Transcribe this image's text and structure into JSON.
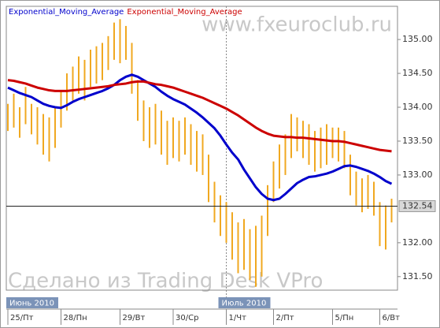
{
  "chart_data": {
    "type": "ohlc",
    "legend": [
      "Exponential_Moving_Average",
      "Exponential_Moving_Average"
    ],
    "watermarks": [
      "www.fxeuroclub.ru",
      "Сделано из Trading Desk VPro"
    ],
    "categories": [
      "25/Пт",
      null,
      null,
      null,
      null,
      null,
      null,
      null,
      null,
      "28/Пн",
      null,
      null,
      null,
      null,
      null,
      null,
      null,
      null,
      null,
      "29/Вт",
      null,
      null,
      null,
      null,
      null,
      null,
      null,
      null,
      "30/Ср",
      null,
      null,
      null,
      null,
      null,
      null,
      null,
      null,
      "1/Чт",
      null,
      null,
      null,
      null,
      null,
      null,
      null,
      "2/Пт",
      null,
      null,
      null,
      null,
      null,
      null,
      null,
      null,
      null,
      "5/Пн",
      null,
      null,
      null,
      null,
      null,
      null,
      null,
      "6/Вт",
      null,
      null
    ],
    "months": [
      "Июнь 2010",
      null,
      null,
      null,
      null,
      null,
      null,
      null,
      null,
      null,
      null,
      null,
      null,
      null,
      null,
      null,
      null,
      null,
      null,
      null,
      null,
      null,
      null,
      null,
      null,
      null,
      null,
      null,
      null,
      null,
      null,
      null,
      null,
      null,
      null,
      null,
      null,
      "Июль 2010",
      null,
      null,
      null,
      null,
      null,
      null,
      null,
      null,
      null,
      null,
      null,
      null,
      null,
      null,
      null,
      null,
      null,
      null,
      null,
      null,
      null,
      null,
      null,
      null,
      null,
      null,
      null,
      null
    ],
    "bars": {
      "color": "#f0a820",
      "high": [
        134.05,
        134.2,
        134.0,
        134.3,
        134.05,
        134.0,
        133.9,
        133.85,
        134.0,
        134.25,
        134.5,
        134.6,
        134.75,
        134.7,
        134.85,
        134.9,
        134.95,
        135.05,
        135.25,
        135.3,
        135.2,
        134.95,
        134.4,
        134.1,
        134.0,
        134.05,
        133.95,
        133.8,
        133.85,
        133.8,
        133.85,
        133.75,
        133.65,
        133.6,
        133.3,
        132.9,
        132.7,
        132.6,
        132.45,
        132.3,
        132.35,
        132.2,
        132.25,
        132.4,
        132.85,
        133.2,
        133.45,
        133.6,
        133.9,
        133.85,
        133.8,
        133.75,
        133.65,
        133.7,
        133.75,
        133.7,
        133.7,
        133.65,
        133.3,
        133.05,
        132.95,
        133.0,
        132.9,
        132.6,
        132.55,
        132.65
      ],
      "low": [
        133.65,
        133.7,
        133.55,
        133.75,
        133.6,
        133.45,
        133.3,
        133.2,
        133.4,
        133.7,
        133.95,
        134.1,
        134.2,
        134.1,
        134.3,
        134.35,
        134.4,
        134.55,
        134.7,
        134.65,
        134.7,
        134.2,
        133.8,
        133.5,
        133.4,
        133.45,
        133.3,
        133.15,
        133.25,
        133.2,
        133.3,
        133.15,
        133.05,
        133.0,
        132.6,
        132.3,
        132.1,
        132.0,
        131.75,
        131.55,
        131.6,
        131.45,
        131.35,
        131.5,
        132.1,
        132.6,
        132.8,
        133.0,
        133.25,
        133.35,
        133.25,
        133.15,
        133.05,
        133.1,
        133.15,
        133.25,
        133.2,
        133.1,
        132.7,
        132.55,
        132.45,
        132.5,
        132.4,
        131.95,
        131.9,
        132.3
      ]
    },
    "series": [
      {
        "name": "Exponential_Moving_Average",
        "color": "#0000cc",
        "values": [
          134.29,
          134.25,
          134.21,
          134.18,
          134.15,
          134.1,
          134.05,
          134.02,
          134.0,
          133.99,
          134.03,
          134.08,
          134.12,
          134.15,
          134.18,
          134.21,
          134.24,
          134.28,
          134.33,
          134.4,
          134.45,
          134.48,
          134.45,
          134.4,
          134.35,
          134.3,
          134.23,
          134.17,
          134.12,
          134.08,
          134.04,
          133.98,
          133.92,
          133.85,
          133.77,
          133.69,
          133.58,
          133.45,
          133.33,
          133.23,
          133.08,
          132.95,
          132.82,
          132.72,
          132.65,
          132.63,
          132.65,
          132.72,
          132.8,
          132.88,
          132.93,
          132.97,
          132.98,
          133.0,
          133.02,
          133.05,
          133.09,
          133.13,
          133.14,
          133.12,
          133.09,
          133.06,
          133.02,
          132.97,
          132.91,
          132.87
        ]
      },
      {
        "name": "Exponential_Moving_Average",
        "color": "#cc0000",
        "values": [
          134.4,
          134.39,
          134.37,
          134.35,
          134.32,
          134.29,
          134.27,
          134.25,
          134.24,
          134.24,
          134.24,
          134.25,
          134.26,
          134.27,
          134.28,
          134.29,
          134.3,
          134.31,
          134.33,
          134.34,
          134.35,
          134.37,
          134.38,
          134.38,
          134.36,
          134.34,
          134.33,
          134.31,
          134.29,
          134.26,
          134.23,
          134.2,
          134.17,
          134.14,
          134.1,
          134.06,
          134.02,
          133.98,
          133.93,
          133.88,
          133.82,
          133.76,
          133.7,
          133.65,
          133.61,
          133.58,
          133.57,
          133.56,
          133.56,
          133.55,
          133.55,
          133.54,
          133.53,
          133.52,
          133.51,
          133.5,
          133.5,
          133.49,
          133.47,
          133.45,
          133.43,
          133.41,
          133.39,
          133.37,
          133.36,
          133.35
        ]
      }
    ],
    "current_price": 132.54,
    "ylim": [
      131.3,
      135.49
    ],
    "yticks": [
      {
        "value": 131.5,
        "label": "131.50"
      },
      {
        "value": 132,
        "label": "132.00"
      },
      {
        "value": 133,
        "label": "133.00"
      },
      {
        "value": 133.5,
        "label": "133.50"
      },
      {
        "value": 134,
        "label": "134.00"
      },
      {
        "value": 134.5,
        "label": "134.50"
      },
      {
        "value": 135,
        "label": "135.00"
      }
    ]
  }
}
